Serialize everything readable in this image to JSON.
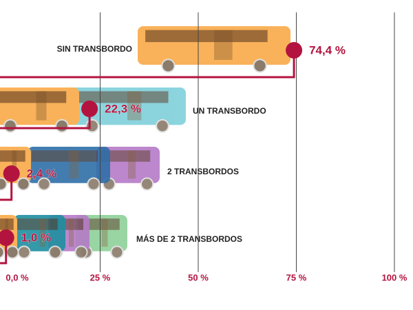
{
  "chart_data": {
    "type": "bar",
    "categories": [
      "SIN TRANSBORDO",
      "UN TRANSBORDO",
      "2 TRANSBORDOS",
      "MÁS DE 2 TRANSBORDOS"
    ],
    "values": [
      74.4,
      22.3,
      2.4,
      1.0
    ],
    "value_labels": [
      "74,4 %",
      "22,3 %",
      "2,4 %",
      "1,0 %"
    ],
    "color": "#b3143f",
    "xlim": [
      0,
      100
    ],
    "xticks": [
      {
        "value": 0,
        "label": "0,0 %"
      },
      {
        "value": 25,
        "label": "25 %"
      },
      {
        "value": 50,
        "label": "50 %"
      },
      {
        "value": 75,
        "label": "75 %"
      },
      {
        "value": 100,
        "label": "100 %"
      }
    ],
    "grid": true
  }
}
